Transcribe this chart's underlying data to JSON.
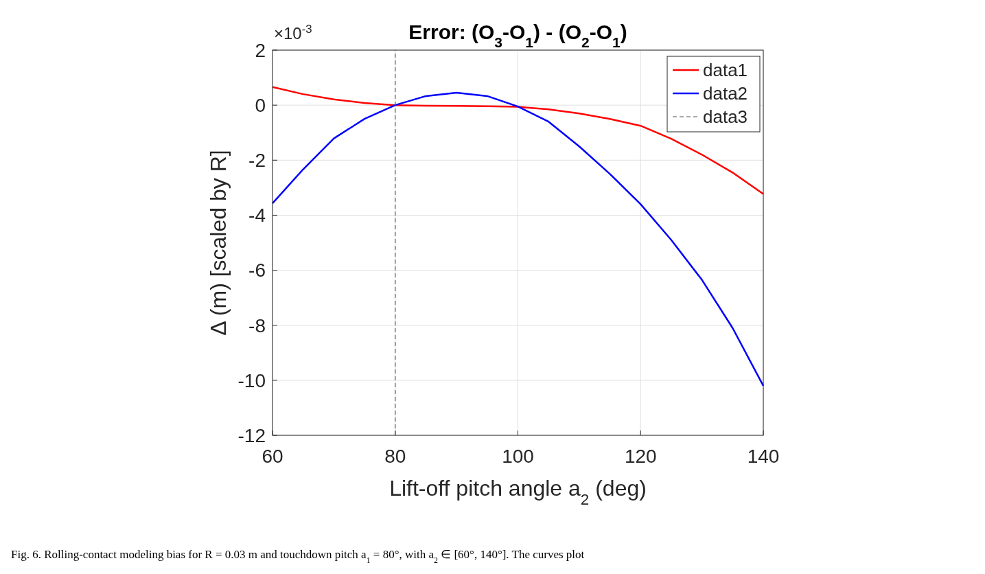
{
  "chart_data": {
    "type": "line",
    "title": "Error:  (O$_{3}$-O$_{1}$)  -  (O$_{2}$-O$_{1}$)",
    "xlabel": "Lift-off  pitch  angle  a$_{2}$  (deg)",
    "ylabel": "Δ  (m)    [scaled  by  R]",
    "annotations": [
      "×10$^{-3}$",
      "Fig. 6.  Rolling-contact modeling bias for R = 0.03 m and touchdown pitch a$_{1}$ = 80°, with a$_{2}$ ∈ [60°, 140°]. The curves plot"
    ],
    "x": [
      60,
      65,
      70,
      75,
      80,
      85,
      90,
      95,
      100,
      105,
      110,
      115,
      120,
      125,
      130,
      135,
      140
    ],
    "series": [
      {
        "name": "data1",
        "color": "#ff0000",
        "values": [
          0.66,
          0.4,
          0.21,
          0.08,
          0,
          -0.02,
          -0.03,
          -0.04,
          -0.06,
          -0.15,
          -0.3,
          -0.5,
          -0.75,
          -1.22,
          -1.8,
          -2.45,
          -3.23
        ]
      },
      {
        "name": "data2",
        "color": "#0000ff",
        "values": [
          -3.57,
          -2.33,
          -1.21,
          -0.5,
          0,
          0.33,
          0.45,
          0.33,
          -0.05,
          -0.6,
          -1.5,
          -2.5,
          -3.6,
          -4.9,
          -6.35,
          -8.1,
          -10.2
        ]
      },
      {
        "name": "data3",
        "color": "#555555",
        "line_style": "dashed",
        "x": [
          80,
          80
        ],
        "values": [
          -12,
          2
        ]
      }
    ],
    "xlim": [
      60,
      140
    ],
    "xticks": [
      60,
      80,
      100,
      120,
      140
    ],
    "ylim": [
      -12,
      2
    ],
    "yticks": [
      -12,
      -10,
      -8,
      -6,
      -4,
      -2,
      0,
      2
    ],
    "grid": true,
    "legend": "top right"
  }
}
